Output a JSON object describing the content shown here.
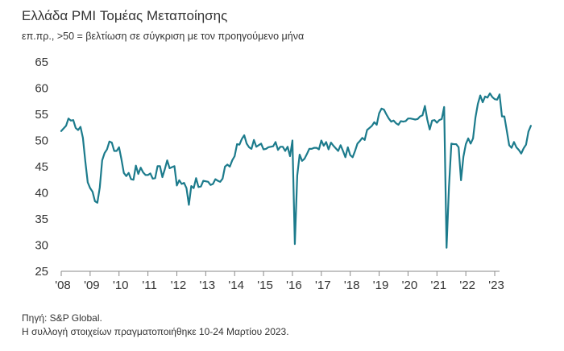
{
  "header": {
    "title": "Ελλάδα PMI Τομέας Μεταποίησης",
    "subtitle": "επ.πρ., >50 = βελτίωση σε σύγκριση με τον προηγούμενο μήνα"
  },
  "footnotes": {
    "source": "Πηγή: S&P Global.",
    "collection": "Η συλλογή στοιχείων πραγματοποιήθηκε 10-24 Μαρτίου 2023."
  },
  "colors": {
    "line": "#1c7b8c",
    "axis": "#888888",
    "text": "#333333"
  },
  "chart_data": {
    "type": "line",
    "title": "Ελλάδα PMI Τομέας Μεταποίησης",
    "subtitle": "επ.πρ., >50 = βελτίωση σε σύγκριση με τον προηγούμενο μήνα",
    "xlabel": "",
    "ylabel": "",
    "ylim": [
      25,
      65
    ],
    "yticks": [
      25,
      30,
      35,
      40,
      45,
      50,
      55,
      60,
      65
    ],
    "xticks": [
      "'08",
      "'09",
      "'10",
      "'11",
      "'12",
      "'13",
      "'14",
      "'15",
      "'16",
      "'17",
      "'18",
      "'19",
      "'20",
      "'21",
      "'22",
      "'23"
    ],
    "grid": false,
    "legend": "none",
    "series": [
      {
        "x_start": "2008-01",
        "frequency": "monthly",
        "values": [
          51.8,
          52.3,
          52.8,
          54.2,
          53.8,
          53.9,
          52.4,
          52.0,
          52.6,
          50.5,
          46.0,
          42.0,
          40.9,
          40.2,
          38.4,
          38.1,
          41.0,
          46.2,
          47.6,
          48.3,
          49.8,
          49.6,
          48.0,
          48.0,
          48.7,
          46.4,
          43.8,
          43.2,
          43.8,
          42.6,
          42.5,
          45.2,
          43.6,
          44.8,
          43.9,
          43.4,
          43.4,
          43.7,
          42.7,
          42.8,
          45.1,
          45.1,
          43.0,
          44.5,
          46.2,
          44.7,
          44.9,
          45.1,
          41.4,
          42.4,
          41.7,
          41.9,
          40.9,
          37.7,
          41.3,
          40.9,
          42.8,
          41.1,
          41.2,
          42.3,
          42.2,
          42.1,
          41.5,
          41.7,
          42.6,
          42.3,
          42.1,
          42.7,
          45.0,
          45.4,
          45.0,
          46.2,
          47.0,
          49.3,
          49.2,
          50.3,
          51.0,
          49.4,
          48.7,
          48.4,
          50.1,
          48.8,
          49.1,
          49.4,
          48.3,
          48.4,
          48.7,
          48.8,
          48.9,
          49.7,
          48.2,
          48.8,
          48.8,
          48.0,
          48.8,
          47.0,
          50.0,
          30.2,
          43.3,
          47.3,
          46.1,
          46.5,
          47.4,
          48.4,
          48.4,
          48.6,
          48.6,
          48.3,
          50.0,
          49.0,
          49.7,
          48.3,
          49.6,
          49.0,
          48.5,
          48.0,
          49.1,
          48.0,
          46.8,
          48.7,
          47.2,
          46.8,
          48.0,
          49.4,
          49.9,
          50.5,
          50.1,
          52.0,
          52.4,
          52.8,
          53.5,
          53.0,
          55.2,
          56.1,
          55.9,
          55.0,
          54.2,
          53.6,
          53.8,
          53.3,
          53.0,
          53.7,
          53.6,
          53.7,
          54.2,
          54.2,
          54.1,
          54.0,
          54.1,
          54.6,
          54.8,
          56.6,
          54.0,
          52.1,
          53.8,
          53.9,
          53.4,
          53.9,
          54.1,
          56.4,
          29.5,
          41.1,
          49.4,
          49.3,
          49.3,
          48.7,
          42.4,
          46.9,
          49.3,
          50.4,
          49.4,
          50.4,
          54.4,
          57.0,
          58.6,
          57.3,
          58.4,
          58.2,
          59.0,
          58.3,
          57.9,
          57.8,
          58.8,
          54.6,
          54.6,
          51.9,
          49.1,
          48.6,
          49.7,
          48.7,
          48.2,
          47.5,
          48.5,
          49.2,
          51.7,
          52.8
        ]
      }
    ]
  }
}
